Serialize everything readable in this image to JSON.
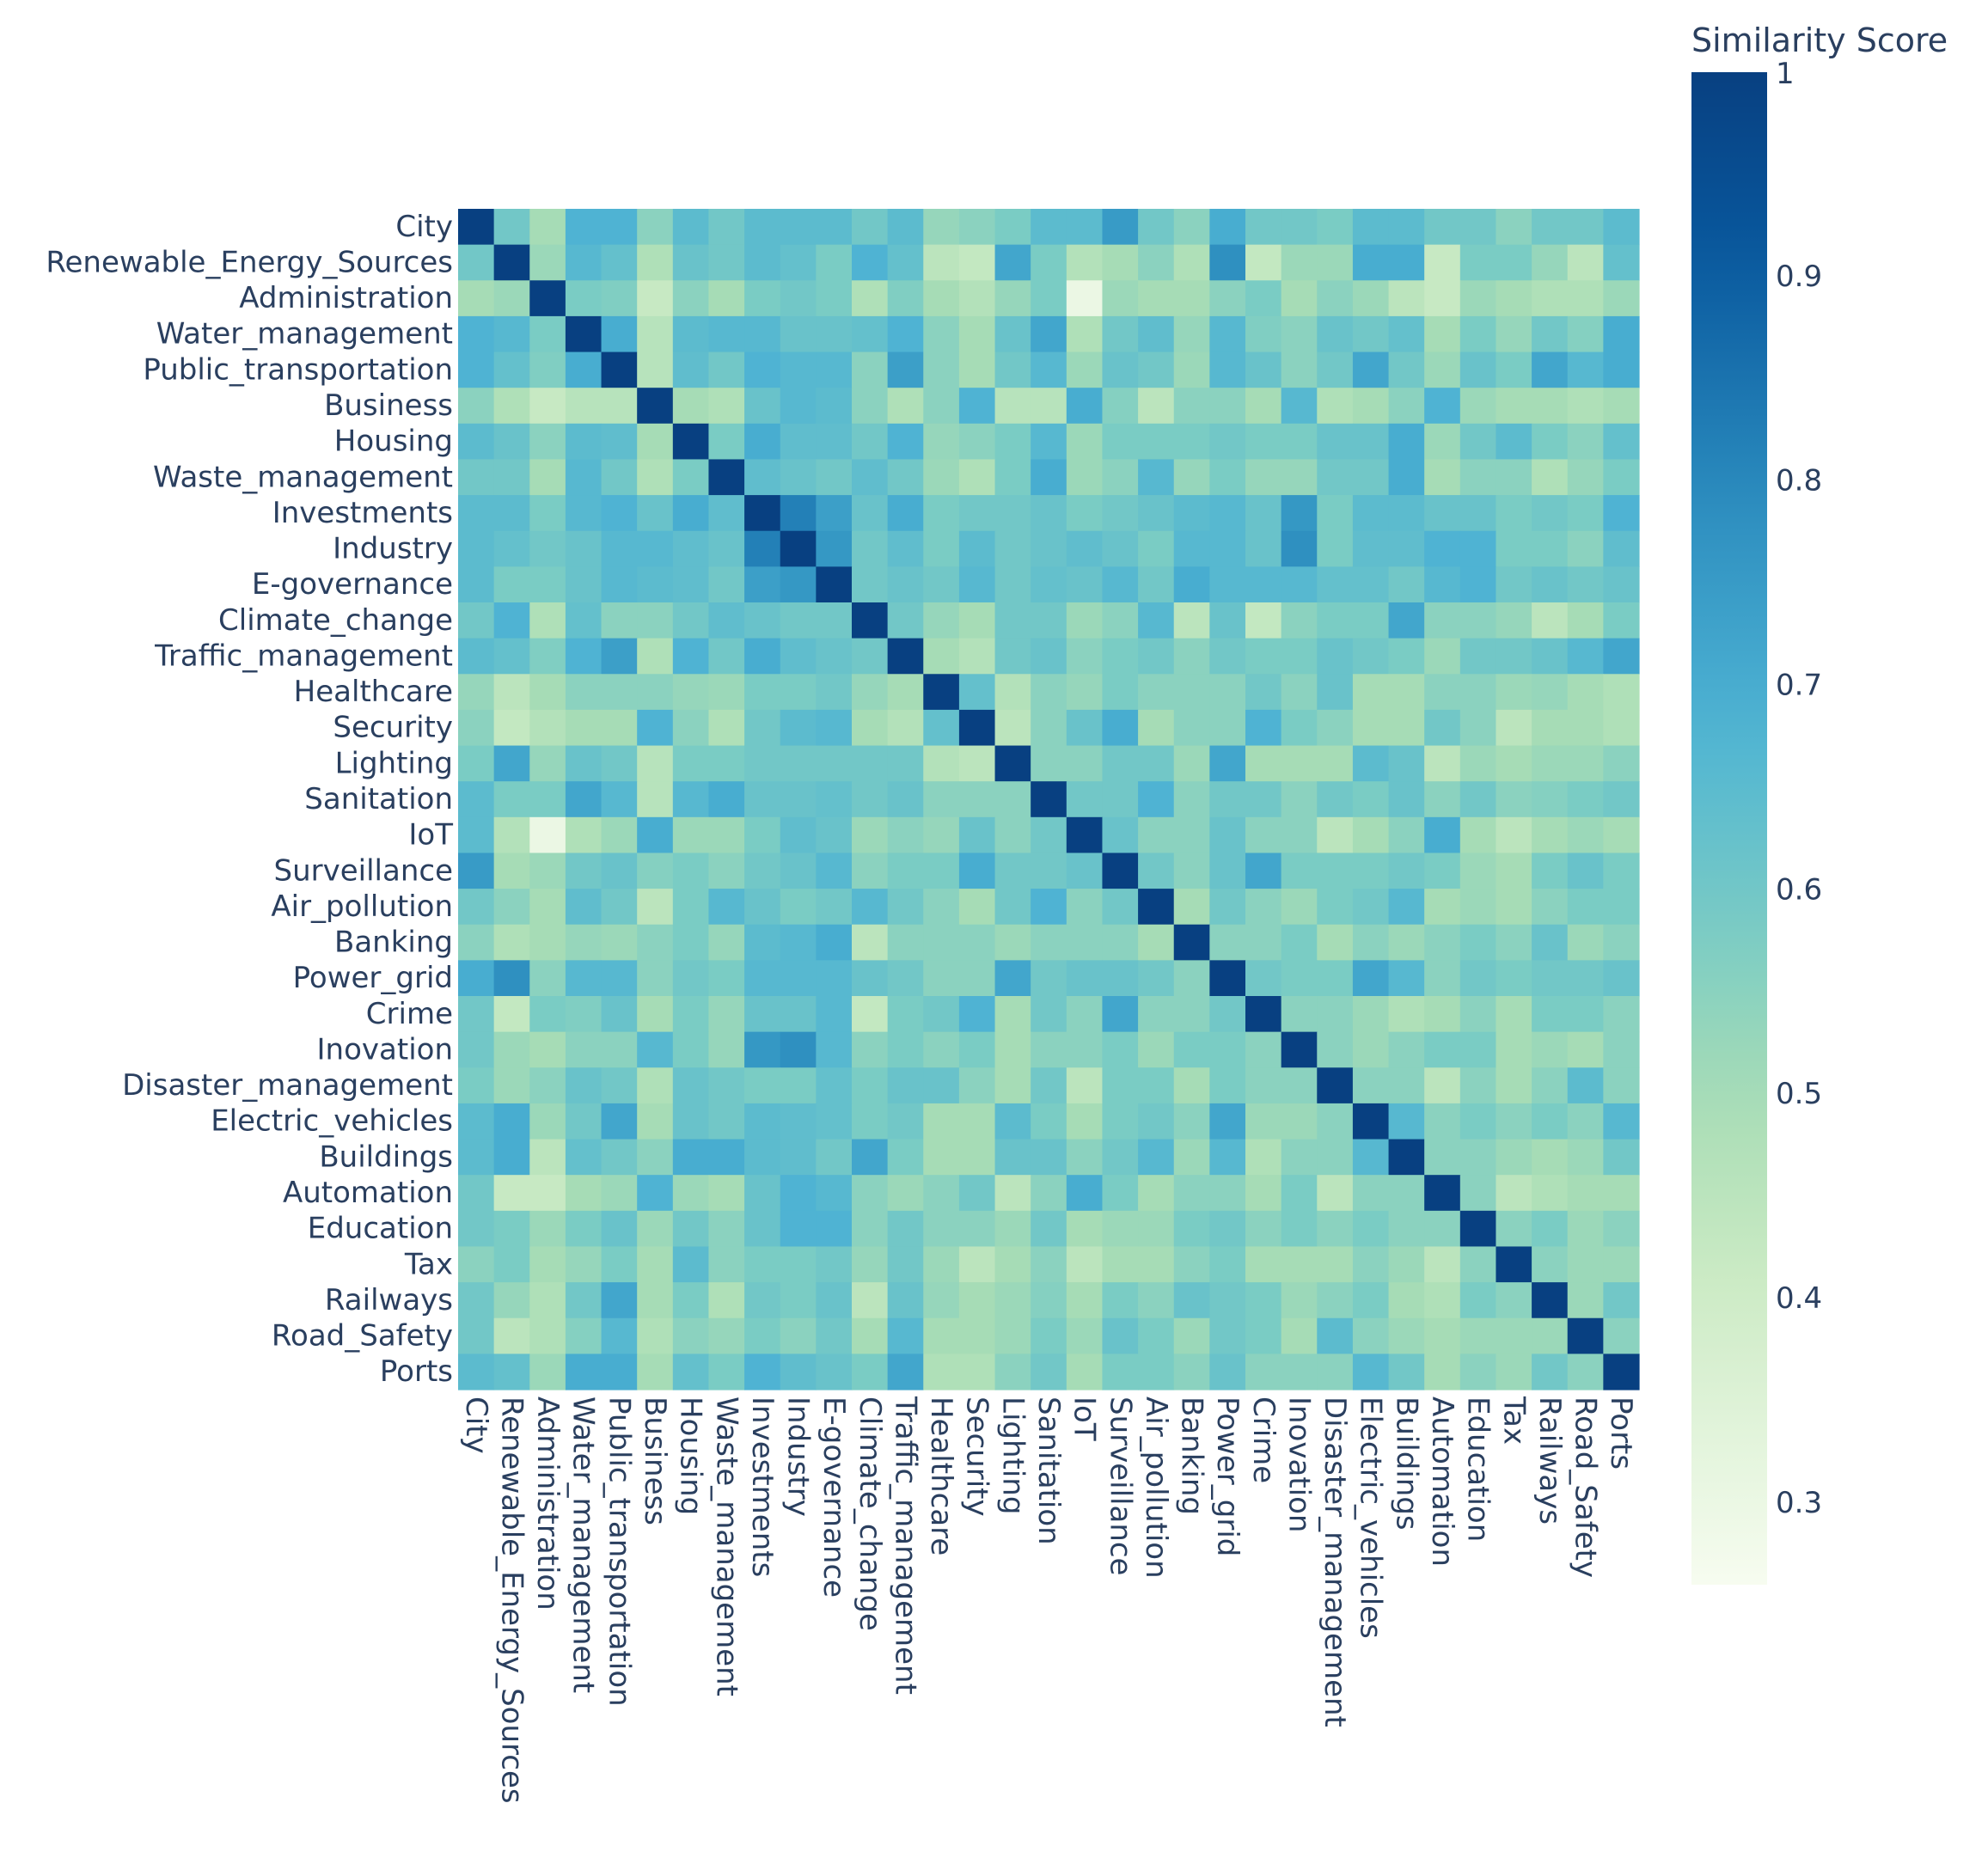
{
  "chart_data": {
    "type": "heatmap",
    "labels": [
      "City",
      "Renewable_Energy_Sources",
      "Administration",
      "Water_management",
      "Public_transportation",
      "Business",
      "Housing",
      "Waste_management",
      "Investments",
      "Industry",
      "E-governance",
      "Climate_change",
      "Traffic_management",
      "Healthcare",
      "Security",
      "Lighting",
      "Sanitation",
      "IoT",
      "Surveillance",
      "Air_pollution",
      "Banking",
      "Power_grid",
      "Crime",
      "Inovation",
      "Disaster_management",
      "Electric_vehicles",
      "Buildings",
      "Automation",
      "Education",
      "Tax",
      "Railways",
      "Road_Safety",
      "Ports"
    ],
    "z": [
      [
        1,
        0.6,
        0.5,
        0.68,
        0.68,
        0.55,
        0.65,
        0.6,
        0.65,
        0.65,
        0.65,
        0.6,
        0.65,
        0.53,
        0.55,
        0.58,
        0.65,
        0.65,
        0.75,
        0.6,
        0.55,
        0.7,
        0.6,
        0.6,
        0.58,
        0.65,
        0.65,
        0.6,
        0.6,
        0.55,
        0.6,
        0.6,
        0.65
      ],
      [
        0.6,
        1,
        0.52,
        0.66,
        0.63,
        0.48,
        0.62,
        0.6,
        0.65,
        0.63,
        0.58,
        0.68,
        0.63,
        0.45,
        0.43,
        0.72,
        0.58,
        0.47,
        0.5,
        0.55,
        0.48,
        0.78,
        0.43,
        0.52,
        0.52,
        0.7,
        0.7,
        0.42,
        0.58,
        0.58,
        0.53,
        0.45,
        0.63
      ],
      [
        0.5,
        0.52,
        1,
        0.58,
        0.57,
        0.42,
        0.55,
        0.5,
        0.58,
        0.6,
        0.58,
        0.48,
        0.57,
        0.5,
        0.47,
        0.53,
        0.58,
        0.3,
        0.52,
        0.5,
        0.5,
        0.55,
        0.58,
        0.5,
        0.55,
        0.52,
        0.45,
        0.42,
        0.52,
        0.5,
        0.48,
        0.48,
        0.52
      ],
      [
        0.68,
        0.66,
        0.58,
        1,
        0.7,
        0.46,
        0.65,
        0.66,
        0.66,
        0.62,
        0.62,
        0.63,
        0.68,
        0.55,
        0.5,
        0.62,
        0.72,
        0.48,
        0.6,
        0.64,
        0.53,
        0.66,
        0.57,
        0.55,
        0.62,
        0.6,
        0.63,
        0.5,
        0.58,
        0.53,
        0.6,
        0.56,
        0.7
      ],
      [
        0.68,
        0.63,
        0.57,
        0.7,
        1,
        0.46,
        0.64,
        0.6,
        0.68,
        0.66,
        0.66,
        0.55,
        0.74,
        0.55,
        0.5,
        0.6,
        0.66,
        0.52,
        0.62,
        0.6,
        0.52,
        0.66,
        0.62,
        0.55,
        0.6,
        0.72,
        0.6,
        0.52,
        0.62,
        0.58,
        0.72,
        0.66,
        0.7
      ],
      [
        0.55,
        0.48,
        0.42,
        0.46,
        0.46,
        1,
        0.5,
        0.48,
        0.62,
        0.66,
        0.65,
        0.55,
        0.48,
        0.55,
        0.68,
        0.46,
        0.46,
        0.7,
        0.56,
        0.45,
        0.55,
        0.55,
        0.5,
        0.66,
        0.48,
        0.5,
        0.55,
        0.68,
        0.52,
        0.5,
        0.5,
        0.48,
        0.5
      ],
      [
        0.65,
        0.62,
        0.55,
        0.65,
        0.64,
        0.5,
        1,
        0.58,
        0.7,
        0.64,
        0.64,
        0.6,
        0.68,
        0.53,
        0.55,
        0.58,
        0.66,
        0.52,
        0.58,
        0.58,
        0.58,
        0.6,
        0.58,
        0.58,
        0.62,
        0.62,
        0.7,
        0.52,
        0.6,
        0.65,
        0.58,
        0.55,
        0.63
      ],
      [
        0.6,
        0.6,
        0.5,
        0.66,
        0.6,
        0.48,
        0.58,
        1,
        0.64,
        0.62,
        0.6,
        0.64,
        0.6,
        0.52,
        0.48,
        0.58,
        0.7,
        0.52,
        0.55,
        0.66,
        0.53,
        0.58,
        0.53,
        0.53,
        0.6,
        0.6,
        0.7,
        0.5,
        0.55,
        0.55,
        0.48,
        0.53,
        0.58
      ],
      [
        0.65,
        0.65,
        0.58,
        0.66,
        0.68,
        0.62,
        0.7,
        0.64,
        1,
        0.82,
        0.74,
        0.62,
        0.7,
        0.58,
        0.6,
        0.6,
        0.62,
        0.58,
        0.6,
        0.62,
        0.65,
        0.66,
        0.62,
        0.76,
        0.58,
        0.65,
        0.65,
        0.62,
        0.62,
        0.58,
        0.6,
        0.58,
        0.68
      ],
      [
        0.65,
        0.63,
        0.6,
        0.62,
        0.66,
        0.66,
        0.64,
        0.62,
        0.82,
        1,
        0.76,
        0.6,
        0.64,
        0.58,
        0.65,
        0.6,
        0.62,
        0.64,
        0.62,
        0.58,
        0.66,
        0.66,
        0.62,
        0.78,
        0.58,
        0.64,
        0.64,
        0.68,
        0.68,
        0.58,
        0.58,
        0.55,
        0.64
      ],
      [
        0.65,
        0.58,
        0.58,
        0.62,
        0.66,
        0.65,
        0.64,
        0.6,
        0.74,
        0.76,
        1,
        0.6,
        0.62,
        0.6,
        0.66,
        0.6,
        0.63,
        0.62,
        0.66,
        0.6,
        0.7,
        0.66,
        0.66,
        0.66,
        0.63,
        0.63,
        0.6,
        0.66,
        0.68,
        0.6,
        0.62,
        0.6,
        0.62
      ],
      [
        0.6,
        0.68,
        0.48,
        0.63,
        0.55,
        0.55,
        0.6,
        0.64,
        0.62,
        0.6,
        0.6,
        1,
        0.6,
        0.53,
        0.5,
        0.6,
        0.6,
        0.52,
        0.55,
        0.66,
        0.45,
        0.62,
        0.43,
        0.55,
        0.58,
        0.58,
        0.72,
        0.55,
        0.55,
        0.53,
        0.45,
        0.5,
        0.58
      ],
      [
        0.65,
        0.63,
        0.57,
        0.68,
        0.74,
        0.48,
        0.68,
        0.6,
        0.7,
        0.64,
        0.62,
        0.6,
        1,
        0.5,
        0.47,
        0.6,
        0.62,
        0.55,
        0.58,
        0.6,
        0.55,
        0.6,
        0.58,
        0.58,
        0.62,
        0.6,
        0.58,
        0.52,
        0.6,
        0.6,
        0.62,
        0.66,
        0.72
      ],
      [
        0.53,
        0.45,
        0.5,
        0.55,
        0.55,
        0.55,
        0.53,
        0.52,
        0.58,
        0.58,
        0.6,
        0.53,
        0.5,
        1,
        0.63,
        0.47,
        0.55,
        0.53,
        0.58,
        0.55,
        0.55,
        0.55,
        0.6,
        0.55,
        0.62,
        0.5,
        0.5,
        0.55,
        0.55,
        0.52,
        0.53,
        0.5,
        0.48
      ],
      [
        0.55,
        0.43,
        0.47,
        0.5,
        0.5,
        0.68,
        0.55,
        0.48,
        0.6,
        0.65,
        0.66,
        0.5,
        0.47,
        0.63,
        1,
        0.45,
        0.55,
        0.62,
        0.7,
        0.5,
        0.55,
        0.55,
        0.68,
        0.58,
        0.55,
        0.5,
        0.5,
        0.6,
        0.55,
        0.45,
        0.5,
        0.5,
        0.48
      ],
      [
        0.58,
        0.72,
        0.53,
        0.62,
        0.6,
        0.46,
        0.58,
        0.58,
        0.6,
        0.6,
        0.6,
        0.6,
        0.6,
        0.47,
        0.45,
        1,
        0.55,
        0.55,
        0.6,
        0.6,
        0.52,
        0.72,
        0.5,
        0.5,
        0.5,
        0.65,
        0.62,
        0.45,
        0.52,
        0.5,
        0.52,
        0.52,
        0.55
      ],
      [
        0.65,
        0.58,
        0.58,
        0.72,
        0.66,
        0.46,
        0.66,
        0.7,
        0.62,
        0.62,
        0.63,
        0.6,
        0.62,
        0.55,
        0.55,
        0.55,
        1,
        0.6,
        0.6,
        0.68,
        0.55,
        0.6,
        0.6,
        0.55,
        0.6,
        0.58,
        0.62,
        0.55,
        0.6,
        0.55,
        0.56,
        0.58,
        0.6
      ],
      [
        0.65,
        0.47,
        0.3,
        0.48,
        0.52,
        0.7,
        0.52,
        0.52,
        0.58,
        0.64,
        0.62,
        0.52,
        0.55,
        0.53,
        0.62,
        0.55,
        0.6,
        1,
        0.62,
        0.55,
        0.55,
        0.62,
        0.55,
        0.55,
        0.45,
        0.5,
        0.55,
        0.7,
        0.5,
        0.45,
        0.5,
        0.52,
        0.5
      ],
      [
        0.75,
        0.5,
        0.52,
        0.6,
        0.62,
        0.56,
        0.58,
        0.55,
        0.6,
        0.62,
        0.66,
        0.55,
        0.58,
        0.58,
        0.7,
        0.6,
        0.6,
        0.62,
        1,
        0.6,
        0.55,
        0.62,
        0.72,
        0.58,
        0.58,
        0.58,
        0.6,
        0.58,
        0.52,
        0.5,
        0.58,
        0.62,
        0.58
      ],
      [
        0.6,
        0.55,
        0.5,
        0.64,
        0.6,
        0.45,
        0.58,
        0.66,
        0.62,
        0.58,
        0.6,
        0.66,
        0.6,
        0.55,
        0.5,
        0.6,
        0.68,
        0.55,
        0.6,
        1,
        0.5,
        0.6,
        0.55,
        0.52,
        0.58,
        0.6,
        0.66,
        0.5,
        0.52,
        0.5,
        0.55,
        0.58,
        0.58
      ],
      [
        0.55,
        0.48,
        0.5,
        0.53,
        0.52,
        0.55,
        0.58,
        0.53,
        0.65,
        0.66,
        0.7,
        0.45,
        0.55,
        0.55,
        0.55,
        0.52,
        0.55,
        0.55,
        0.55,
        0.5,
        1,
        0.55,
        0.55,
        0.58,
        0.5,
        0.55,
        0.52,
        0.55,
        0.58,
        0.55,
        0.62,
        0.52,
        0.55
      ],
      [
        0.7,
        0.78,
        0.55,
        0.66,
        0.66,
        0.55,
        0.6,
        0.58,
        0.66,
        0.66,
        0.66,
        0.62,
        0.6,
        0.55,
        0.55,
        0.72,
        0.6,
        0.62,
        0.62,
        0.6,
        0.55,
        1,
        0.6,
        0.58,
        0.58,
        0.72,
        0.66,
        0.55,
        0.6,
        0.58,
        0.6,
        0.6,
        0.62
      ],
      [
        0.6,
        0.43,
        0.58,
        0.57,
        0.62,
        0.5,
        0.58,
        0.53,
        0.62,
        0.62,
        0.66,
        0.43,
        0.58,
        0.6,
        0.68,
        0.5,
        0.6,
        0.55,
        0.72,
        0.55,
        0.55,
        0.6,
        1,
        0.55,
        0.55,
        0.52,
        0.48,
        0.5,
        0.55,
        0.5,
        0.58,
        0.58,
        0.55
      ],
      [
        0.6,
        0.52,
        0.5,
        0.55,
        0.55,
        0.66,
        0.58,
        0.53,
        0.76,
        0.78,
        0.66,
        0.55,
        0.58,
        0.55,
        0.58,
        0.5,
        0.55,
        0.55,
        0.58,
        0.52,
        0.58,
        0.58,
        0.55,
        1,
        0.55,
        0.52,
        0.55,
        0.58,
        0.58,
        0.5,
        0.52,
        0.5,
        0.55
      ],
      [
        0.58,
        0.52,
        0.55,
        0.62,
        0.6,
        0.48,
        0.62,
        0.6,
        0.58,
        0.58,
        0.63,
        0.58,
        0.62,
        0.62,
        0.55,
        0.5,
        0.6,
        0.45,
        0.58,
        0.58,
        0.5,
        0.58,
        0.55,
        0.55,
        1,
        0.55,
        0.55,
        0.45,
        0.55,
        0.5,
        0.55,
        0.65,
        0.55
      ],
      [
        0.65,
        0.7,
        0.52,
        0.6,
        0.72,
        0.5,
        0.62,
        0.6,
        0.65,
        0.64,
        0.63,
        0.58,
        0.6,
        0.5,
        0.5,
        0.65,
        0.58,
        0.5,
        0.58,
        0.6,
        0.55,
        0.72,
        0.52,
        0.52,
        0.55,
        1,
        0.66,
        0.55,
        0.58,
        0.55,
        0.58,
        0.55,
        0.66
      ],
      [
        0.65,
        0.7,
        0.45,
        0.63,
        0.6,
        0.55,
        0.7,
        0.7,
        0.65,
        0.64,
        0.6,
        0.72,
        0.58,
        0.5,
        0.5,
        0.62,
        0.62,
        0.55,
        0.6,
        0.66,
        0.52,
        0.66,
        0.48,
        0.55,
        0.55,
        0.66,
        1,
        0.55,
        0.55,
        0.52,
        0.5,
        0.52,
        0.6
      ],
      [
        0.6,
        0.42,
        0.42,
        0.5,
        0.52,
        0.68,
        0.52,
        0.5,
        0.62,
        0.68,
        0.66,
        0.55,
        0.52,
        0.55,
        0.6,
        0.45,
        0.55,
        0.7,
        0.58,
        0.5,
        0.55,
        0.55,
        0.5,
        0.58,
        0.45,
        0.55,
        0.55,
        1,
        0.55,
        0.45,
        0.48,
        0.5,
        0.5
      ],
      [
        0.6,
        0.58,
        0.52,
        0.58,
        0.62,
        0.52,
        0.6,
        0.55,
        0.62,
        0.68,
        0.68,
        0.55,
        0.6,
        0.55,
        0.55,
        0.52,
        0.6,
        0.5,
        0.52,
        0.52,
        0.58,
        0.6,
        0.55,
        0.58,
        0.55,
        0.58,
        0.55,
        0.55,
        1,
        0.55,
        0.58,
        0.52,
        0.55
      ],
      [
        0.55,
        0.58,
        0.5,
        0.53,
        0.58,
        0.5,
        0.65,
        0.55,
        0.58,
        0.58,
        0.6,
        0.53,
        0.6,
        0.52,
        0.45,
        0.5,
        0.55,
        0.45,
        0.5,
        0.5,
        0.55,
        0.58,
        0.5,
        0.5,
        0.5,
        0.55,
        0.52,
        0.45,
        0.55,
        1,
        0.55,
        0.52,
        0.52
      ],
      [
        0.6,
        0.53,
        0.48,
        0.6,
        0.72,
        0.5,
        0.58,
        0.48,
        0.6,
        0.58,
        0.62,
        0.45,
        0.62,
        0.53,
        0.5,
        0.52,
        0.56,
        0.5,
        0.58,
        0.55,
        0.62,
        0.6,
        0.58,
        0.52,
        0.55,
        0.58,
        0.5,
        0.48,
        0.58,
        0.55,
        1,
        0.52,
        0.6
      ],
      [
        0.6,
        0.45,
        0.48,
        0.56,
        0.66,
        0.48,
        0.55,
        0.53,
        0.58,
        0.55,
        0.6,
        0.5,
        0.66,
        0.5,
        0.5,
        0.52,
        0.58,
        0.52,
        0.62,
        0.58,
        0.52,
        0.6,
        0.58,
        0.5,
        0.65,
        0.55,
        0.52,
        0.5,
        0.52,
        0.52,
        0.52,
        1,
        0.55
      ],
      [
        0.65,
        0.63,
        0.52,
        0.7,
        0.7,
        0.5,
        0.63,
        0.58,
        0.68,
        0.64,
        0.62,
        0.58,
        0.72,
        0.48,
        0.48,
        0.55,
        0.6,
        0.5,
        0.58,
        0.58,
        0.55,
        0.62,
        0.55,
        0.55,
        0.55,
        0.66,
        0.6,
        0.5,
        0.55,
        0.52,
        0.6,
        0.55,
        1
      ]
    ],
    "zmin": 0.26,
    "zmax": 1,
    "colorscale": "GnBu",
    "colorbar": {
      "title": "Similarity Score",
      "ticks": [
        1,
        0.9,
        0.8,
        0.7,
        0.6,
        0.5,
        0.4,
        0.3
      ],
      "tick_labels": [
        "1",
        "0.9",
        "0.8",
        "0.7",
        "0.6",
        "0.5",
        "0.4",
        "0.3"
      ]
    }
  },
  "colors": {
    "stops": [
      "#f7fcf0",
      "#ccebc5",
      "#a8ddb5",
      "#7bccc4",
      "#4eb3d3",
      "#2b8cbe",
      "#08589e",
      "#084081"
    ],
    "positions": [
      0,
      0.2,
      0.32,
      0.43,
      0.57,
      0.72,
      0.88,
      1
    ]
  }
}
